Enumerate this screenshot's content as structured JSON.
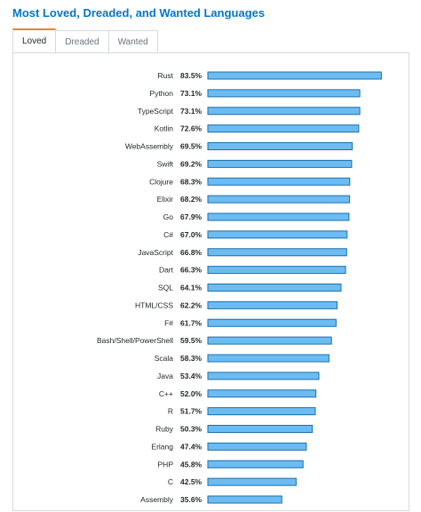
{
  "header": {
    "title": "Most Loved, Dreaded, and Wanted Languages"
  },
  "tabs": [
    {
      "label": "Loved",
      "active": true
    },
    {
      "label": "Dreaded",
      "active": false
    },
    {
      "label": "Wanted",
      "active": false
    }
  ],
  "colors": {
    "title": "#0077cc",
    "bar_fill": "#6cbcf4",
    "bar_stroke": "#1e6fa8",
    "active_tab_accent": "#f48024"
  },
  "chart_data": {
    "type": "bar",
    "orientation": "horizontal",
    "title": "",
    "xlabel": "",
    "ylabel": "",
    "grid": false,
    "legend": "none",
    "unit": "%",
    "categories": [
      "Rust",
      "Python",
      "TypeScript",
      "Kotlin",
      "WebAssembly",
      "Swift",
      "Clojure",
      "Elixir",
      "Go",
      "C#",
      "JavaScript",
      "Dart",
      "SQL",
      "HTML/CSS",
      "F#",
      "Bash/Shell/PowerShell",
      "Scala",
      "Java",
      "C++",
      "R",
      "Ruby",
      "Erlang",
      "PHP",
      "C",
      "Assembly"
    ],
    "values": [
      83.5,
      73.1,
      73.1,
      72.6,
      69.5,
      69.2,
      68.3,
      68.2,
      67.9,
      67.0,
      66.8,
      66.3,
      64.1,
      62.2,
      61.7,
      59.5,
      58.3,
      53.4,
      52.0,
      51.7,
      50.3,
      47.4,
      45.8,
      42.5,
      35.6
    ],
    "value_labels": [
      "83.5%",
      "73.1%",
      "73.1%",
      "72.6%",
      "69.5%",
      "69.2%",
      "68.3%",
      "68.2%",
      "67.9%",
      "67.0%",
      "66.8%",
      "66.3%",
      "64.1%",
      "62.2%",
      "61.7%",
      "59.5%",
      "58.3%",
      "53.4%",
      "52.0%",
      "51.7%",
      "50.3%",
      "47.4%",
      "45.8%",
      "42.5%",
      "35.6%"
    ]
  }
}
